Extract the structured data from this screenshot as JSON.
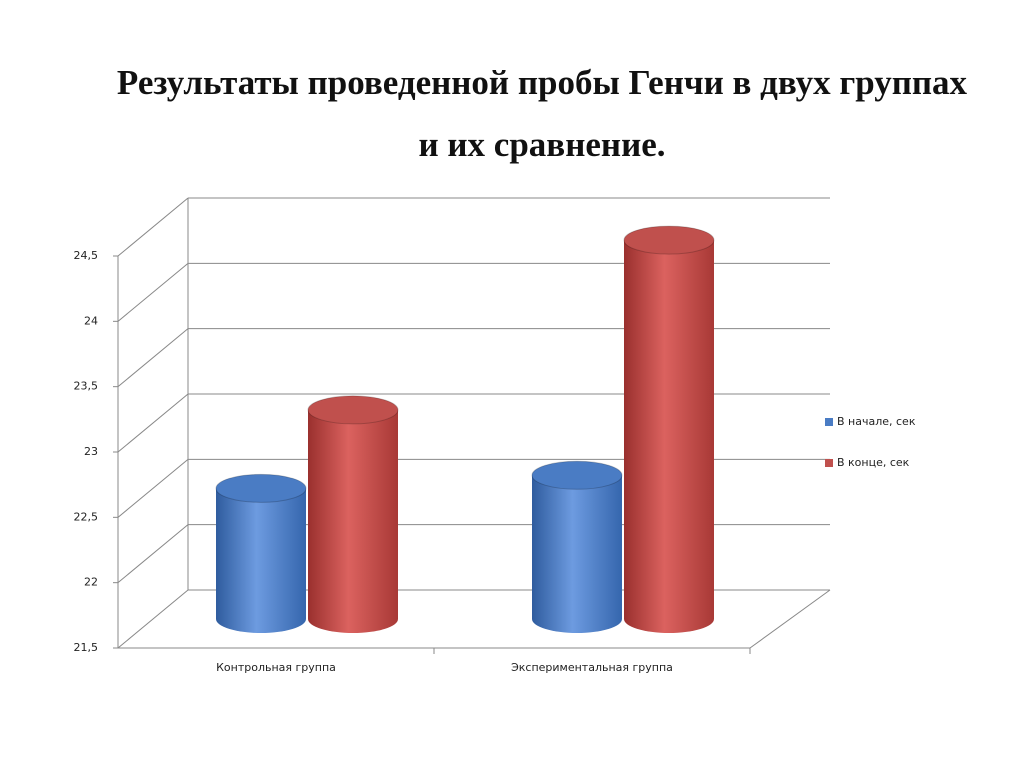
{
  "chart_data": {
    "type": "bar3d",
    "title": "Результаты проведенной пробы Генчи в двух группах и их сравнение.",
    "categories": [
      "Контрольная группа",
      "Экспериментальная группа"
    ],
    "series": [
      {
        "name": "В начале, сек",
        "color": "#4a7cc4",
        "values": [
          22.5,
          22.6
        ]
      },
      {
        "name": "В конце, сек",
        "color": "#c0504d",
        "values": [
          23.1,
          24.4
        ]
      }
    ],
    "ylim": [
      21.5,
      24.5
    ],
    "yticks": [
      {
        "value": 21.5,
        "label": "21,5"
      },
      22,
      {
        "value": 22.5,
        "label": "22,5"
      },
      23,
      {
        "value": 23.5,
        "label": "23,5"
      },
      24,
      {
        "value": 24.5,
        "label": "24,5"
      }
    ],
    "grid": true,
    "legend": "right"
  }
}
